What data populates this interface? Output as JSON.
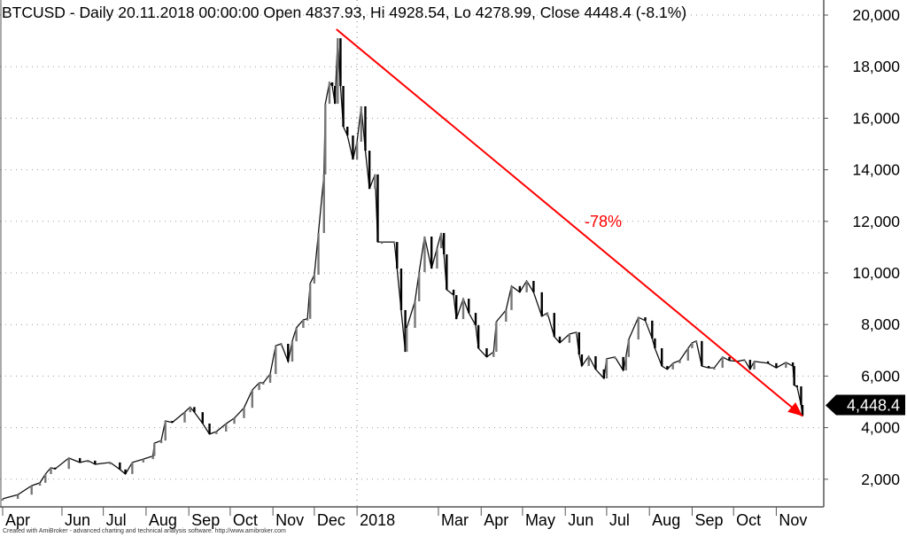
{
  "chart_data": {
    "type": "candlestick",
    "title": "BTCUSD - Daily 20.11.2018 00:00:00 Open 4837.93, Hi 4928.54, Lo 4278.99, Close 4448.4 (-8.1%)",
    "credit": "Created with AmiBroker - advanced charting and technical analysis software. http://www.amibroker.com",
    "xrange": [
      "2017-04-19",
      "2018-11-20"
    ],
    "ylim": [
      0,
      20000
    ],
    "yticks": [
      2000,
      4000,
      6000,
      8000,
      10000,
      12000,
      14000,
      16000,
      18000,
      20000
    ],
    "ytick_labels": [
      "2,000",
      "4,000",
      "6,000",
      "8,000",
      "10,000",
      "12,000",
      "14,000",
      "16,000",
      "18,000",
      "20,000"
    ],
    "grid": true,
    "xticks": [
      {
        "date": "2017-04-19",
        "label": "Apr"
      },
      {
        "date": "2017-06-01",
        "label": "Jun"
      },
      {
        "date": "2017-07-01",
        "label": "Jul"
      },
      {
        "date": "2017-08-01",
        "label": "Aug"
      },
      {
        "date": "2017-09-01",
        "label": "Sep"
      },
      {
        "date": "2017-10-01",
        "label": "Oct"
      },
      {
        "date": "2017-11-01",
        "label": "Nov"
      },
      {
        "date": "2017-12-01",
        "label": "Dec"
      },
      {
        "date": "2018-01-01",
        "label": "2018"
      },
      {
        "date": "2018-03-01",
        "label": "Mar"
      },
      {
        "date": "2018-04-01",
        "label": "Apr"
      },
      {
        "date": "2018-05-01",
        "label": "May"
      },
      {
        "date": "2018-06-01",
        "label": "Jun"
      },
      {
        "date": "2018-07-01",
        "label": "Jul"
      },
      {
        "date": "2018-08-01",
        "label": "Aug"
      },
      {
        "date": "2018-09-01",
        "label": "Sep"
      },
      {
        "date": "2018-10-01",
        "label": "Oct"
      },
      {
        "date": "2018-11-01",
        "label": "Nov"
      }
    ],
    "year_divider": "2018-01-01",
    "series": [
      {
        "close": [
          [
            "2017-04-19",
            1240
          ],
          [
            "2017-04-30",
            1400
          ],
          [
            "2017-05-10",
            1750
          ],
          [
            "2017-05-16",
            1860
          ],
          [
            "2017-05-20",
            2200
          ],
          [
            "2017-05-24",
            2450
          ],
          [
            "2017-05-27",
            2400
          ],
          [
            "2017-06-06",
            2820
          ],
          [
            "2017-06-14",
            2650
          ],
          [
            "2017-06-20",
            2720
          ],
          [
            "2017-06-25",
            2580
          ],
          [
            "2017-07-06",
            2650
          ],
          [
            "2017-07-13",
            2380
          ],
          [
            "2017-07-17",
            2200
          ],
          [
            "2017-07-22",
            2650
          ],
          [
            "2017-07-30",
            2780
          ],
          [
            "2017-08-06",
            2900
          ],
          [
            "2017-08-07",
            3400
          ],
          [
            "2017-08-12",
            3500
          ],
          [
            "2017-08-15",
            4260
          ],
          [
            "2017-08-20",
            4200
          ],
          [
            "2017-08-29",
            4600
          ],
          [
            "2017-09-02",
            4800
          ],
          [
            "2017-09-05",
            4600
          ],
          [
            "2017-09-11",
            4160
          ],
          [
            "2017-09-16",
            3750
          ],
          [
            "2017-09-21",
            3850
          ],
          [
            "2017-09-28",
            4150
          ],
          [
            "2017-10-04",
            4370
          ],
          [
            "2017-10-11",
            4770
          ],
          [
            "2017-10-17",
            5460
          ],
          [
            "2017-10-22",
            5740
          ],
          [
            "2017-10-25",
            5740
          ],
          [
            "2017-10-30",
            6080
          ],
          [
            "2017-11-03",
            7180
          ],
          [
            "2017-11-07",
            7250
          ],
          [
            "2017-11-12",
            6560
          ],
          [
            "2017-11-15",
            7350
          ],
          [
            "2017-11-18",
            7870
          ],
          [
            "2017-11-23",
            8180
          ],
          [
            "2017-11-26",
            8220
          ],
          [
            "2017-11-28",
            9590
          ],
          [
            "2017-12-01",
            9930
          ],
          [
            "2017-12-04",
            11550
          ],
          [
            "2017-12-08",
            13820
          ],
          [
            "2017-12-09",
            16560
          ],
          [
            "2017-12-12",
            17390
          ],
          [
            "2017-12-14",
            17250
          ],
          [
            "2017-12-16",
            16560
          ],
          [
            "2017-12-18",
            19100
          ],
          [
            "2017-12-20",
            17250
          ],
          [
            "2017-12-22",
            15670
          ],
          [
            "2017-12-25",
            15330
          ],
          [
            "2017-12-29",
            14400
          ],
          [
            "2018-01-01",
            15090
          ],
          [
            "2018-01-04",
            16460
          ],
          [
            "2018-01-07",
            14740
          ],
          [
            "2018-01-10",
            13260
          ],
          [
            "2018-01-14",
            13820
          ],
          [
            "2018-01-16",
            11200
          ],
          [
            "2018-01-19",
            11200
          ],
          [
            "2018-01-28",
            11200
          ],
          [
            "2018-01-30",
            10170
          ],
          [
            "2018-02-02",
            8560
          ],
          [
            "2018-02-05",
            6940
          ],
          [
            "2018-02-06",
            7870
          ],
          [
            "2018-02-12",
            8900
          ],
          [
            "2018-02-15",
            10030
          ],
          [
            "2018-02-19",
            11410
          ],
          [
            "2018-02-24",
            10170
          ],
          [
            "2018-02-28",
            10960
          ],
          [
            "2018-03-03",
            11550
          ],
          [
            "2018-03-05",
            10720
          ],
          [
            "2018-03-07",
            9350
          ],
          [
            "2018-03-12",
            9140
          ],
          [
            "2018-03-14",
            8210
          ],
          [
            "2018-03-19",
            9000
          ],
          [
            "2018-03-23",
            8450
          ],
          [
            "2018-03-28",
            7970
          ],
          [
            "2018-03-30",
            7080
          ],
          [
            "2018-04-05",
            6740
          ],
          [
            "2018-04-10",
            6940
          ],
          [
            "2018-04-12",
            8110
          ],
          [
            "2018-04-19",
            8560
          ],
          [
            "2018-04-23",
            9490
          ],
          [
            "2018-04-29",
            9250
          ],
          [
            "2018-05-04",
            9690
          ],
          [
            "2018-05-09",
            9250
          ],
          [
            "2018-05-15",
            8320
          ],
          [
            "2018-05-19",
            8450
          ],
          [
            "2018-05-24",
            7530
          ],
          [
            "2018-05-28",
            7290
          ],
          [
            "2018-06-04",
            7630
          ],
          [
            "2018-06-09",
            7700
          ],
          [
            "2018-06-11",
            6840
          ],
          [
            "2018-06-13",
            6390
          ],
          [
            "2018-06-18",
            6770
          ],
          [
            "2018-06-23",
            6260
          ],
          [
            "2018-06-29",
            5910
          ],
          [
            "2018-07-01",
            6670
          ],
          [
            "2018-07-07",
            6740
          ],
          [
            "2018-07-13",
            6220
          ],
          [
            "2018-07-15",
            6740
          ],
          [
            "2018-07-17",
            7420
          ],
          [
            "2018-07-24",
            8280
          ],
          [
            "2018-07-29",
            8150
          ],
          [
            "2018-08-03",
            7460
          ],
          [
            "2018-08-05",
            7080
          ],
          [
            "2018-08-10",
            6390
          ],
          [
            "2018-08-14",
            6260
          ],
          [
            "2018-08-18",
            6500
          ],
          [
            "2018-08-23",
            6600
          ],
          [
            "2018-08-29",
            7080
          ],
          [
            "2018-09-01",
            7290
          ],
          [
            "2018-09-04",
            7360
          ],
          [
            "2018-09-08",
            6390
          ],
          [
            "2018-09-13",
            6320
          ],
          [
            "2018-09-17",
            6320
          ],
          [
            "2018-09-23",
            6740
          ],
          [
            "2018-09-28",
            6600
          ],
          [
            "2018-10-04",
            6570
          ],
          [
            "2018-10-09",
            6630
          ],
          [
            "2018-10-13",
            6260
          ],
          [
            "2018-10-16",
            6570
          ],
          [
            "2018-10-26",
            6500
          ],
          [
            "2018-11-01",
            6320
          ],
          [
            "2018-11-08",
            6530
          ],
          [
            "2018-11-13",
            6390
          ],
          [
            "2018-11-14",
            5640
          ],
          [
            "2018-11-16",
            5600
          ],
          [
            "2018-11-19",
            4880
          ],
          [
            "2018-11-20",
            4448.4
          ]
        ]
      }
    ],
    "last_price_label": "4,448.4",
    "annotation": {
      "text": "-78%",
      "color": "#ff0000",
      "line_from": [
        "2017-12-17",
        19450
      ],
      "line_to": [
        "2018-11-20",
        4448.4
      ],
      "label_at": [
        "2018-06-15",
        12000
      ]
    }
  }
}
